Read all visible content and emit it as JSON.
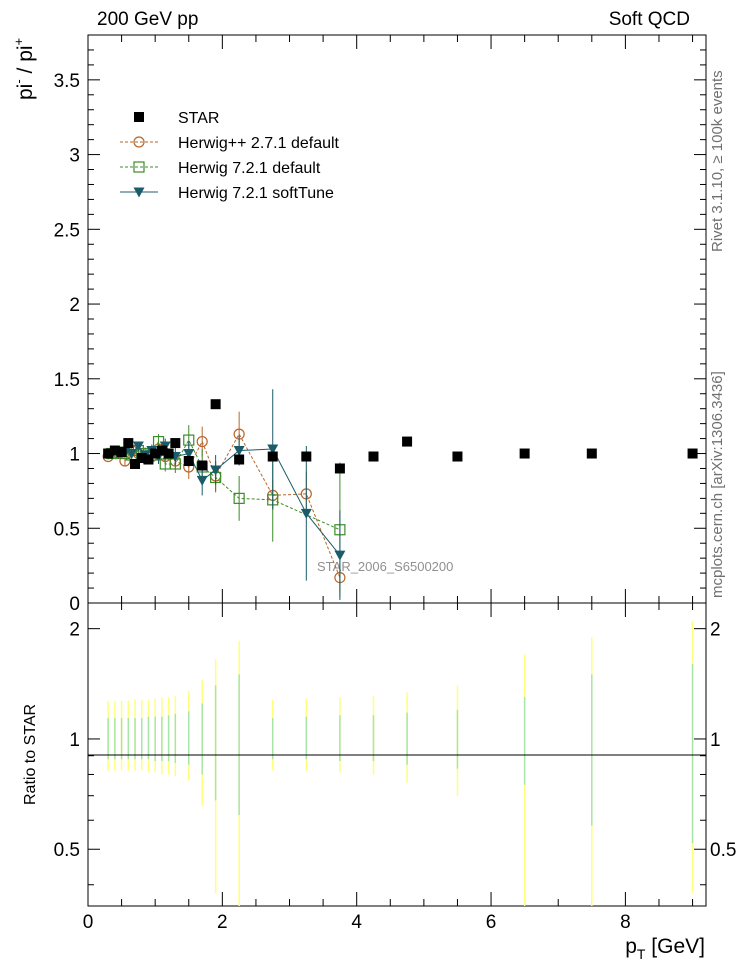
{
  "header": {
    "left": "200 GeV pp",
    "right": "Soft QCD"
  },
  "side": {
    "rivet": "Rivet 3.1.10, ≥ 100k events",
    "mcplots": "mcplots.cern.ch [arXiv:1306.3436]"
  },
  "colors": {
    "star": "#000000",
    "herwigpp": "#b8652a",
    "herwig7_default": "#3c8c28",
    "herwig7_softtune": "#1a5c6a",
    "band_yellow": "#ffff7a",
    "band_green": "#a8e6a8"
  },
  "chart_data": [
    {
      "type": "scatter",
      "panel": "main",
      "ylabel": "pi- / pi+",
      "ylim": [
        0,
        3.8
      ],
      "xlim": [
        0,
        9.2
      ],
      "yticks": [
        "0",
        "0.5",
        "1",
        "1.5",
        "2",
        "2.5",
        "3",
        "3.5"
      ],
      "legend_position": "top-left",
      "analysis_label": "STAR_2006_S6500200",
      "series": [
        {
          "name": "STAR",
          "marker": "filled-square",
          "x": [
            0.3,
            0.4,
            0.5,
            0.6,
            0.7,
            0.8,
            0.9,
            1.0,
            1.1,
            1.2,
            1.3,
            1.5,
            1.7,
            1.9,
            2.25,
            2.75,
            3.25,
            3.75,
            4.25,
            4.75,
            5.5,
            6.5,
            7.5,
            9.0
          ],
          "y": [
            1.0,
            1.02,
            1.01,
            1.07,
            0.93,
            0.97,
            0.96,
            1.0,
            1.02,
            1.0,
            1.07,
            0.95,
            0.92,
            1.33,
            0.96,
            0.98,
            0.98,
            0.9,
            0.98,
            1.08,
            0.98,
            1.0,
            1.0,
            1.0
          ]
        },
        {
          "name": "Herwig++ 2.7.1 default",
          "marker": "open-circle",
          "line": "dashed",
          "x": [
            0.3,
            0.45,
            0.55,
            0.65,
            0.75,
            0.85,
            0.95,
            1.05,
            1.15,
            1.3,
            1.5,
            1.7,
            1.9,
            2.25,
            2.75,
            3.25,
            3.75
          ],
          "y": [
            0.98,
            1.0,
            0.95,
            1.02,
            1.0,
            0.97,
            0.98,
            1.03,
            0.98,
            0.95,
            0.91,
            1.08,
            0.85,
            1.13,
            0.72,
            0.73,
            0.17
          ],
          "err": [
            0.02,
            0.03,
            0.03,
            0.03,
            0.03,
            0.03,
            0.04,
            0.04,
            0.05,
            0.06,
            0.08,
            0.1,
            0.1,
            0.15,
            0.1,
            0.15,
            0.1
          ]
        },
        {
          "name": "Herwig 7.2.1 default",
          "marker": "open-square",
          "line": "dashed",
          "x": [
            0.35,
            0.45,
            0.55,
            0.65,
            0.75,
            0.85,
            0.95,
            1.05,
            1.15,
            1.3,
            1.5,
            1.7,
            1.9,
            2.25,
            2.75,
            3.75
          ],
          "y": [
            1.0,
            1.01,
            1.0,
            0.99,
            1.02,
            1.0,
            0.99,
            1.08,
            0.93,
            0.93,
            1.09,
            0.91,
            0.84,
            0.7,
            0.69,
            0.49
          ],
          "err": [
            0.02,
            0.03,
            0.03,
            0.03,
            0.04,
            0.04,
            0.04,
            0.05,
            0.05,
            0.06,
            0.1,
            0.12,
            0.1,
            0.15,
            0.28,
            0.45
          ]
        },
        {
          "name": "Herwig 7.2.1 softTune",
          "marker": "filled-triangle-down",
          "line": "solid",
          "x": [
            0.35,
            0.45,
            0.55,
            0.65,
            0.75,
            0.85,
            0.95,
            1.05,
            1.15,
            1.3,
            1.5,
            1.7,
            1.9,
            2.25,
            2.75,
            3.25,
            3.75
          ],
          "y": [
            1.0,
            1.0,
            1.01,
            1.0,
            1.05,
            0.99,
            1.02,
            0.98,
            1.05,
            0.98,
            1.0,
            0.82,
            0.89,
            1.02,
            1.03,
            0.6,
            0.32
          ],
          "err": [
            0.02,
            0.03,
            0.03,
            0.03,
            0.03,
            0.04,
            0.04,
            0.05,
            0.05,
            0.06,
            0.08,
            0.1,
            0.1,
            0.1,
            0.4,
            0.45,
            0.3
          ]
        }
      ]
    },
    {
      "type": "scatter",
      "panel": "ratio",
      "ylabel": "Ratio to STAR",
      "xlabel": "p_T [GeV]",
      "ylim": [
        0.35,
        2.35
      ],
      "xlim": [
        0,
        9.2
      ],
      "yscale": "log",
      "yticks": [
        "0.5",
        "1",
        "2"
      ],
      "xticks": [
        "0",
        "2",
        "4",
        "6",
        "8"
      ],
      "reference": 1,
      "bands": {
        "x": [
          0.3,
          0.4,
          0.5,
          0.6,
          0.7,
          0.8,
          0.9,
          1.0,
          1.1,
          1.2,
          1.3,
          1.5,
          1.7,
          1.9,
          2.25,
          2.75,
          3.25,
          3.75,
          4.25,
          4.75,
          5.5,
          6.5,
          7.5,
          9.0
        ],
        "stat_low": [
          0.88,
          0.88,
          0.88,
          0.88,
          0.88,
          0.88,
          0.88,
          0.87,
          0.87,
          0.87,
          0.86,
          0.85,
          0.8,
          0.68,
          0.62,
          0.88,
          0.88,
          0.87,
          0.87,
          0.85,
          0.83,
          0.75,
          0.58,
          0.52
        ],
        "stat_high": [
          1.14,
          1.14,
          1.14,
          1.14,
          1.14,
          1.14,
          1.15,
          1.15,
          1.15,
          1.16,
          1.17,
          1.19,
          1.25,
          1.4,
          1.5,
          1.14,
          1.15,
          1.16,
          1.16,
          1.18,
          1.2,
          1.3,
          1.5,
          1.6
        ],
        "tot_low": [
          0.82,
          0.82,
          0.82,
          0.82,
          0.82,
          0.82,
          0.81,
          0.81,
          0.8,
          0.8,
          0.79,
          0.77,
          0.66,
          0.38,
          0.35,
          0.82,
          0.82,
          0.81,
          0.8,
          0.76,
          0.7,
          0.35,
          0.35,
          0.38
        ],
        "tot_high": [
          1.27,
          1.27,
          1.27,
          1.27,
          1.28,
          1.28,
          1.28,
          1.29,
          1.3,
          1.3,
          1.31,
          1.35,
          1.45,
          1.65,
          1.85,
          1.28,
          1.29,
          1.3,
          1.31,
          1.34,
          1.4,
          1.7,
          1.9,
          2.1
        ]
      }
    }
  ]
}
